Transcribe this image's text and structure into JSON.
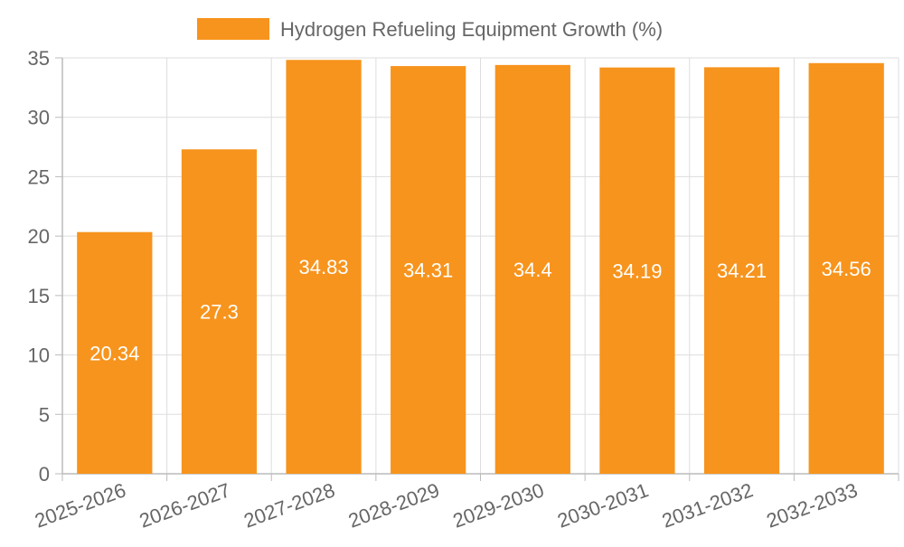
{
  "chart_data": {
    "type": "bar",
    "categories": [
      "2025-2026",
      "2026-2027",
      "2027-2028",
      "2028-2029",
      "2029-2030",
      "2030-2031",
      "2031-2032",
      "2032-2033"
    ],
    "series": [
      {
        "name": "Hydrogen Refueling Equipment Growth (%)",
        "values": [
          20.34,
          27.3,
          34.83,
          34.31,
          34.4,
          34.19,
          34.21,
          34.56
        ],
        "color": "#F7941D"
      }
    ],
    "y_ticks": [
      "0",
      "5",
      "10",
      "15",
      "20",
      "25",
      "30",
      "35"
    ],
    "ylim": [
      0,
      35
    ],
    "grid": true,
    "legend_position": "top-center",
    "data_label_color": "#ffffff",
    "text_color": "#666666",
    "grid_color": "#dddddd",
    "axis_color": "#bbbbbb"
  }
}
